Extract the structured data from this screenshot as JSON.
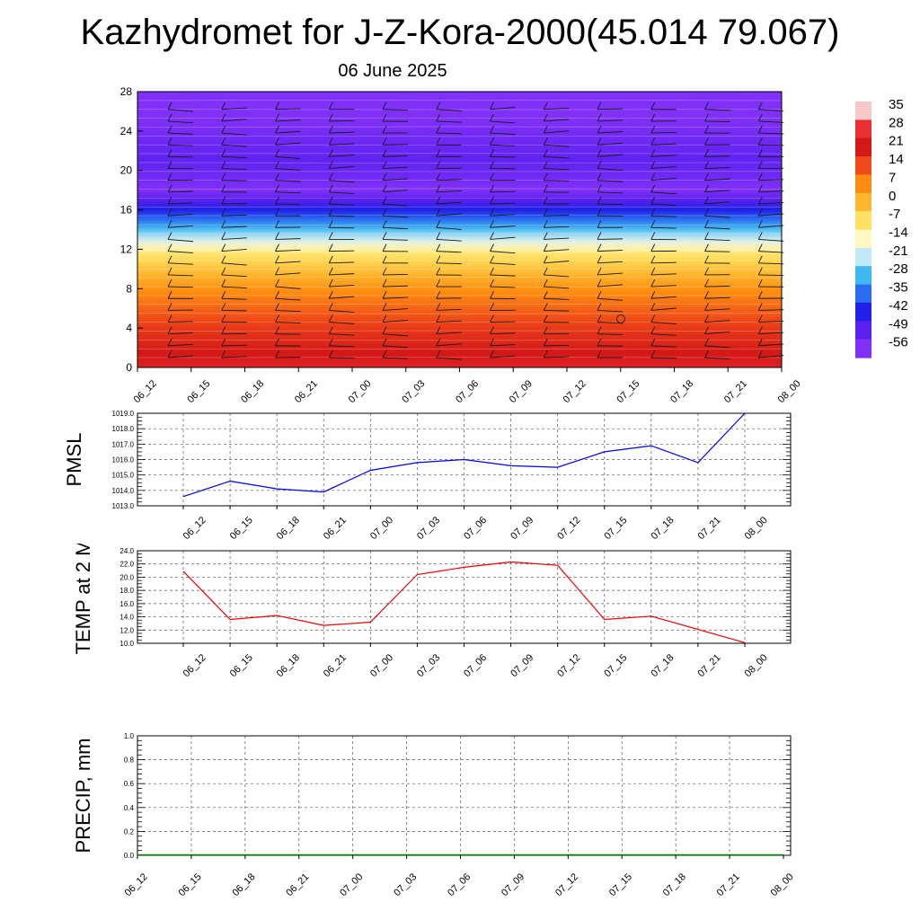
{
  "page": {
    "title": "Kazhydromet for J-Z-Kora-2000(45.014 79.067)",
    "subtitle": "06 June 2025"
  },
  "chart_data": [
    {
      "type": "heatmap",
      "description_note": "",
      "ylim": [
        0,
        28
      ],
      "yticks": [
        "0",
        "4",
        "8",
        "12",
        "16",
        "20",
        "24",
        "28"
      ],
      "x": [
        "06_12",
        "06_15",
        "06_18",
        "06_21",
        "07_00",
        "07_03",
        "07_06",
        "07_09",
        "07_12",
        "07_15",
        "07_18",
        "07_21",
        "08_00"
      ],
      "colorbar": {
        "labels": [
          "35",
          "28",
          "21",
          "14",
          "7",
          "0",
          "-7",
          "-14",
          "-21",
          "-28",
          "-35",
          "-42",
          "-49",
          "-56"
        ],
        "colors": [
          "#f8c8c8",
          "#e83030",
          "#d41818",
          "#f04818",
          "#ff8c10",
          "#ffb830",
          "#ffe060",
          "#fff6c0",
          "#c0e8f8",
          "#40b8f0",
          "#2a6cf0",
          "#2020e8",
          "#5a20f0",
          "#8030f8"
        ]
      },
      "temperature_profile": [
        {
          "level": 0,
          "value": 24
        },
        {
          "level": 4,
          "value": 16
        },
        {
          "level": 8,
          "value": 6
        },
        {
          "level": 11.5,
          "value": -8
        },
        {
          "level": 12.5,
          "value": -16
        },
        {
          "level": 16,
          "value": -42
        },
        {
          "level": 18,
          "value": -56
        },
        {
          "level": 21,
          "value": -50
        },
        {
          "level": 28,
          "value": -60
        }
      ]
    },
    {
      "type": "line",
      "ylabel": "PMSL",
      "ylim": [
        1013.0,
        1019.0
      ],
      "yticks": [
        "1013.0",
        "1014.0",
        "1015.0",
        "1016.0",
        "1017.0",
        "1018.0",
        "1019.0"
      ],
      "x": [
        "06_12",
        "06_15",
        "06_18",
        "06_21",
        "07_00",
        "07_03",
        "07_06",
        "07_09",
        "07_12",
        "07_15",
        "07_18",
        "07_21",
        "08_00"
      ],
      "series": [
        {
          "color": "#0000ee",
          "values": [
            1013.6,
            1014.6,
            1014.1,
            1013.9,
            1015.3,
            1015.8,
            1016.0,
            1015.6,
            1015.5,
            1016.5,
            1016.9,
            1015.8,
            1019.0
          ]
        }
      ],
      "grid": true
    },
    {
      "type": "line",
      "ylabel": "TEMP at 2 M",
      "ylim": [
        10.0,
        24.0
      ],
      "yticks": [
        "10.0",
        "12.0",
        "14.0",
        "16.0",
        "18.0",
        "20.0",
        "22.0",
        "24.0"
      ],
      "x": [
        "06_12",
        "06_15",
        "06_18",
        "06_21",
        "07_00",
        "07_03",
        "07_06",
        "07_09",
        "07_12",
        "07_15",
        "07_18",
        "07_21",
        "08_00"
      ],
      "series": [
        {
          "color": "#ee0000",
          "values": [
            20.9,
            13.6,
            14.2,
            12.7,
            13.2,
            20.4,
            21.5,
            22.3,
            21.8,
            13.6,
            14.1,
            12.1,
            10.1
          ]
        }
      ],
      "grid": true
    },
    {
      "type": "line",
      "ylabel": "PRECIP, mm",
      "ylim": [
        0.0,
        1.0
      ],
      "yticks": [
        "0.0",
        "0.2",
        "0.4",
        "0.6",
        "0.8",
        "1.0"
      ],
      "x": [
        "06_12",
        "06_15",
        "06_18",
        "06_21",
        "07_00",
        "07_03",
        "07_06",
        "07_09",
        "07_12",
        "07_15",
        "07_18",
        "07_21",
        "08_00"
      ],
      "series": [
        {
          "color": "#008000",
          "values": [
            0,
            0,
            0,
            0,
            0,
            0,
            0,
            0,
            0,
            0,
            0,
            0,
            0
          ]
        }
      ],
      "grid": true
    }
  ]
}
